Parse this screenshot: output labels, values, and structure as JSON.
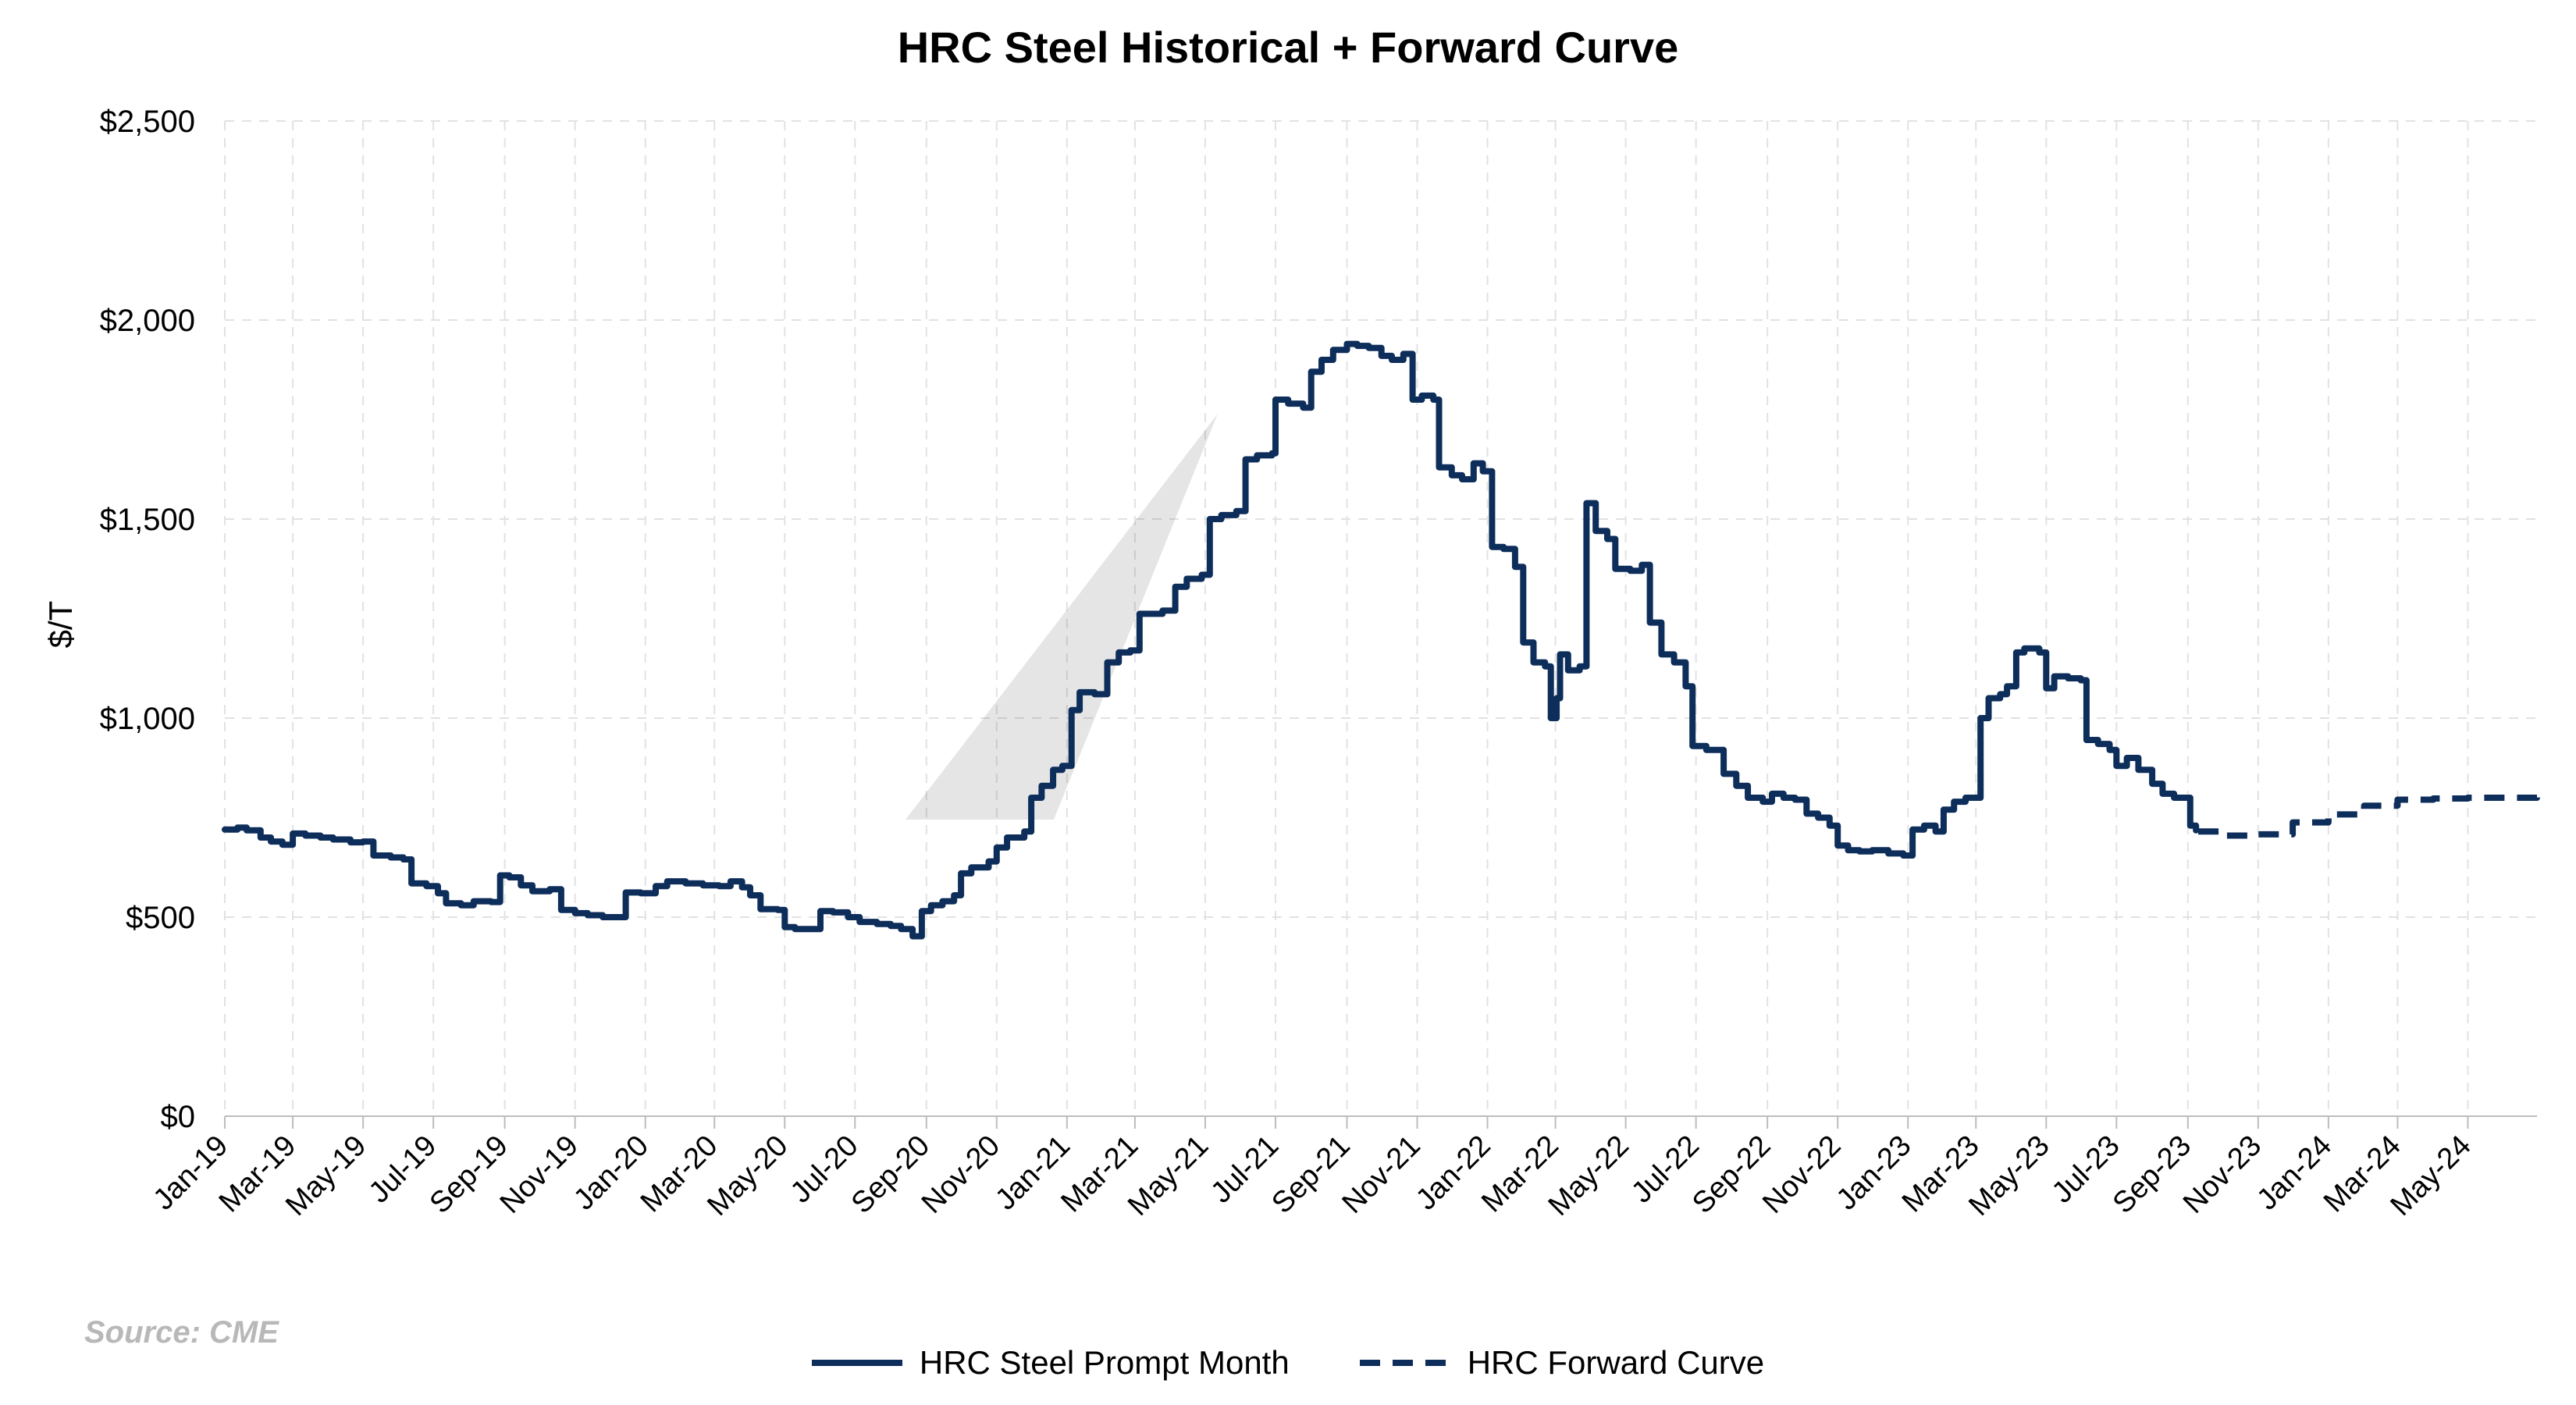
{
  "chart_data": {
    "type": "line",
    "title": "HRC Steel Historical + Forward Curve",
    "ylabel": "$/T",
    "xlabel": "",
    "ylim": [
      0,
      2500
    ],
    "xlim": [
      "2019-01-01",
      "2024-06-30"
    ],
    "y_ticks": [
      "$0",
      "$500",
      "$1,000",
      "$1,500",
      "$2,000",
      "$2,500"
    ],
    "y_tick_values": [
      0,
      500,
      1000,
      1500,
      2000,
      2500
    ],
    "x_ticks": [
      "Jan-19",
      "Mar-19",
      "May-19",
      "Jul-19",
      "Sep-19",
      "Nov-19",
      "Jan-20",
      "Mar-20",
      "May-20",
      "Jul-20",
      "Sep-20",
      "Nov-20",
      "Jan-21",
      "Mar-21",
      "May-21",
      "Jul-21",
      "Sep-21",
      "Nov-21",
      "Jan-22",
      "Mar-22",
      "May-22",
      "Jul-22",
      "Sep-22",
      "Nov-22",
      "Jan-23",
      "Mar-23",
      "May-23",
      "Jul-23",
      "Sep-23",
      "Nov-23",
      "Jan-24",
      "Mar-24",
      "May-24"
    ],
    "x_tick_dates": [
      "2019-01-01",
      "2019-03-01",
      "2019-05-01",
      "2019-07-01",
      "2019-09-01",
      "2019-11-01",
      "2020-01-01",
      "2020-03-01",
      "2020-05-01",
      "2020-07-01",
      "2020-09-01",
      "2020-11-01",
      "2021-01-01",
      "2021-03-01",
      "2021-05-01",
      "2021-07-01",
      "2021-09-01",
      "2021-11-01",
      "2022-01-01",
      "2022-03-01",
      "2022-05-01",
      "2022-07-01",
      "2022-09-01",
      "2022-11-01",
      "2023-01-01",
      "2023-03-01",
      "2023-05-01",
      "2023-07-01",
      "2023-09-01",
      "2023-11-01",
      "2024-01-01",
      "2024-03-01",
      "2024-05-01"
    ],
    "grid": true,
    "legend_position": "bottom",
    "series": [
      {
        "name": "HRC Steel Prompt Month",
        "style": "solid",
        "color": "#0d2d5a",
        "points": [
          [
            "2019-01-01",
            720
          ],
          [
            "2019-01-12",
            725
          ],
          [
            "2019-01-20",
            718
          ],
          [
            "2019-02-01",
            700
          ],
          [
            "2019-02-10",
            690
          ],
          [
            "2019-02-20",
            682
          ],
          [
            "2019-03-01",
            710
          ],
          [
            "2019-03-12",
            705
          ],
          [
            "2019-03-25",
            700
          ],
          [
            "2019-04-05",
            695
          ],
          [
            "2019-04-20",
            688
          ],
          [
            "2019-05-01",
            690
          ],
          [
            "2019-05-10",
            655
          ],
          [
            "2019-05-25",
            650
          ],
          [
            "2019-06-05",
            645
          ],
          [
            "2019-06-12",
            585
          ],
          [
            "2019-06-25",
            578
          ],
          [
            "2019-07-05",
            560
          ],
          [
            "2019-07-12",
            535
          ],
          [
            "2019-07-25",
            530
          ],
          [
            "2019-08-05",
            540
          ],
          [
            "2019-08-20",
            538
          ],
          [
            "2019-08-28",
            605
          ],
          [
            "2019-09-05",
            600
          ],
          [
            "2019-09-15",
            580
          ],
          [
            "2019-09-25",
            565
          ],
          [
            "2019-10-10",
            570
          ],
          [
            "2019-10-20",
            518
          ],
          [
            "2019-11-01",
            510
          ],
          [
            "2019-11-12",
            505
          ],
          [
            "2019-11-25",
            500
          ],
          [
            "2019-12-10",
            500
          ],
          [
            "2019-12-15",
            562
          ],
          [
            "2019-12-28",
            560
          ],
          [
            "2020-01-10",
            578
          ],
          [
            "2020-01-20",
            590
          ],
          [
            "2020-02-05",
            585
          ],
          [
            "2020-02-20",
            580
          ],
          [
            "2020-03-05",
            578
          ],
          [
            "2020-03-15",
            590
          ],
          [
            "2020-03-25",
            575
          ],
          [
            "2020-04-01",
            555
          ],
          [
            "2020-04-10",
            520
          ],
          [
            "2020-04-25",
            518
          ],
          [
            "2020-05-01",
            475
          ],
          [
            "2020-05-10",
            470
          ],
          [
            "2020-05-25",
            470
          ],
          [
            "2020-06-01",
            515
          ],
          [
            "2020-06-12",
            512
          ],
          [
            "2020-06-25",
            500
          ],
          [
            "2020-07-05",
            488
          ],
          [
            "2020-07-20",
            483
          ],
          [
            "2020-08-01",
            478
          ],
          [
            "2020-08-10",
            470
          ],
          [
            "2020-08-20",
            452
          ],
          [
            "2020-08-28",
            515
          ],
          [
            "2020-09-05",
            530
          ],
          [
            "2020-09-15",
            540
          ],
          [
            "2020-09-25",
            555
          ],
          [
            "2020-10-01",
            610
          ],
          [
            "2020-10-10",
            625
          ],
          [
            "2020-10-25",
            640
          ],
          [
            "2020-11-01",
            675
          ],
          [
            "2020-11-10",
            700
          ],
          [
            "2020-11-25",
            715
          ],
          [
            "2020-12-01",
            800
          ],
          [
            "2020-12-10",
            830
          ],
          [
            "2020-12-20",
            870
          ],
          [
            "2020-12-28",
            880
          ],
          [
            "2021-01-05",
            1020
          ],
          [
            "2021-01-12",
            1065
          ],
          [
            "2021-01-25",
            1060
          ],
          [
            "2021-02-05",
            1140
          ],
          [
            "2021-02-15",
            1165
          ],
          [
            "2021-02-25",
            1170
          ],
          [
            "2021-03-05",
            1262
          ],
          [
            "2021-03-15",
            1262
          ],
          [
            "2021-03-25",
            1270
          ],
          [
            "2021-04-05",
            1330
          ],
          [
            "2021-04-15",
            1350
          ],
          [
            "2021-04-28",
            1360
          ],
          [
            "2021-05-05",
            1500
          ],
          [
            "2021-05-15",
            1510
          ],
          [
            "2021-05-28",
            1520
          ],
          [
            "2021-06-05",
            1650
          ],
          [
            "2021-06-15",
            1660
          ],
          [
            "2021-06-28",
            1665
          ],
          [
            "2021-07-01",
            1800
          ],
          [
            "2021-07-12",
            1790
          ],
          [
            "2021-07-25",
            1780
          ],
          [
            "2021-08-01",
            1870
          ],
          [
            "2021-08-10",
            1900
          ],
          [
            "2021-08-20",
            1925
          ],
          [
            "2021-09-01",
            1940
          ],
          [
            "2021-09-10",
            1935
          ],
          [
            "2021-09-20",
            1930
          ],
          [
            "2021-10-01",
            1910
          ],
          [
            "2021-10-10",
            1900
          ],
          [
            "2021-10-20",
            1915
          ],
          [
            "2021-10-28",
            1800
          ],
          [
            "2021-11-05",
            1810
          ],
          [
            "2021-11-15",
            1800
          ],
          [
            "2021-11-20",
            1630
          ],
          [
            "2021-12-01",
            1610
          ],
          [
            "2021-12-10",
            1600
          ],
          [
            "2021-12-20",
            1640
          ],
          [
            "2021-12-28",
            1620
          ],
          [
            "2022-01-05",
            1430
          ],
          [
            "2022-01-15",
            1425
          ],
          [
            "2022-01-25",
            1380
          ],
          [
            "2022-02-01",
            1190
          ],
          [
            "2022-02-10",
            1140
          ],
          [
            "2022-02-20",
            1130
          ],
          [
            "2022-02-25",
            1000
          ],
          [
            "2022-03-02",
            1050
          ],
          [
            "2022-03-05",
            1160
          ],
          [
            "2022-03-12",
            1120
          ],
          [
            "2022-03-22",
            1130
          ],
          [
            "2022-03-28",
            1540
          ],
          [
            "2022-04-05",
            1470
          ],
          [
            "2022-04-15",
            1450
          ],
          [
            "2022-04-22",
            1375
          ],
          [
            "2022-05-05",
            1370
          ],
          [
            "2022-05-15",
            1385
          ],
          [
            "2022-05-22",
            1240
          ],
          [
            "2022-06-01",
            1160
          ],
          [
            "2022-06-12",
            1140
          ],
          [
            "2022-06-22",
            1080
          ],
          [
            "2022-06-28",
            930
          ],
          [
            "2022-07-10",
            920
          ],
          [
            "2022-07-25",
            860
          ],
          [
            "2022-08-05",
            830
          ],
          [
            "2022-08-15",
            800
          ],
          [
            "2022-08-28",
            790
          ],
          [
            "2022-09-05",
            810
          ],
          [
            "2022-09-15",
            800
          ],
          [
            "2022-09-25",
            795
          ],
          [
            "2022-10-05",
            760
          ],
          [
            "2022-10-15",
            750
          ],
          [
            "2022-10-25",
            730
          ],
          [
            "2022-11-01",
            680
          ],
          [
            "2022-11-10",
            668
          ],
          [
            "2022-11-20",
            665
          ],
          [
            "2022-12-01",
            668
          ],
          [
            "2022-12-15",
            660
          ],
          [
            "2022-12-28",
            655
          ],
          [
            "2023-01-05",
            720
          ],
          [
            "2023-01-15",
            730
          ],
          [
            "2023-01-25",
            715
          ],
          [
            "2023-02-01",
            770
          ],
          [
            "2023-02-10",
            790
          ],
          [
            "2023-02-20",
            800
          ],
          [
            "2023-02-28",
            800
          ],
          [
            "2023-03-05",
            1000
          ],
          [
            "2023-03-12",
            1050
          ],
          [
            "2023-03-22",
            1060
          ],
          [
            "2023-03-28",
            1080
          ],
          [
            "2023-04-05",
            1165
          ],
          [
            "2023-04-12",
            1175
          ],
          [
            "2023-04-25",
            1165
          ],
          [
            "2023-05-01",
            1075
          ],
          [
            "2023-05-08",
            1105
          ],
          [
            "2023-05-20",
            1100
          ],
          [
            "2023-05-31",
            1095
          ],
          [
            "2023-06-05",
            945
          ],
          [
            "2023-06-15",
            935
          ],
          [
            "2023-06-25",
            920
          ],
          [
            "2023-07-01",
            880
          ],
          [
            "2023-07-10",
            900
          ],
          [
            "2023-07-20",
            870
          ],
          [
            "2023-08-01",
            835
          ],
          [
            "2023-08-10",
            810
          ],
          [
            "2023-08-20",
            800
          ],
          [
            "2023-08-31",
            800
          ],
          [
            "2023-09-03",
            730
          ],
          [
            "2023-09-08",
            718
          ]
        ]
      },
      {
        "name": "HRC Forward Curve",
        "style": "dashed",
        "color": "#0d2d5a",
        "points": [
          [
            "2023-09-10",
            715
          ],
          [
            "2023-10-01",
            705
          ],
          [
            "2023-11-01",
            708
          ],
          [
            "2023-12-01",
            738
          ],
          [
            "2024-01-01",
            758
          ],
          [
            "2024-02-01",
            780
          ],
          [
            "2024-03-01",
            795
          ],
          [
            "2024-04-01",
            798
          ],
          [
            "2024-05-01",
            800
          ],
          [
            "2024-06-01",
            800
          ],
          [
            "2024-06-30",
            815
          ]
        ]
      }
    ],
    "annotations": [
      "Source: CME"
    ]
  }
}
